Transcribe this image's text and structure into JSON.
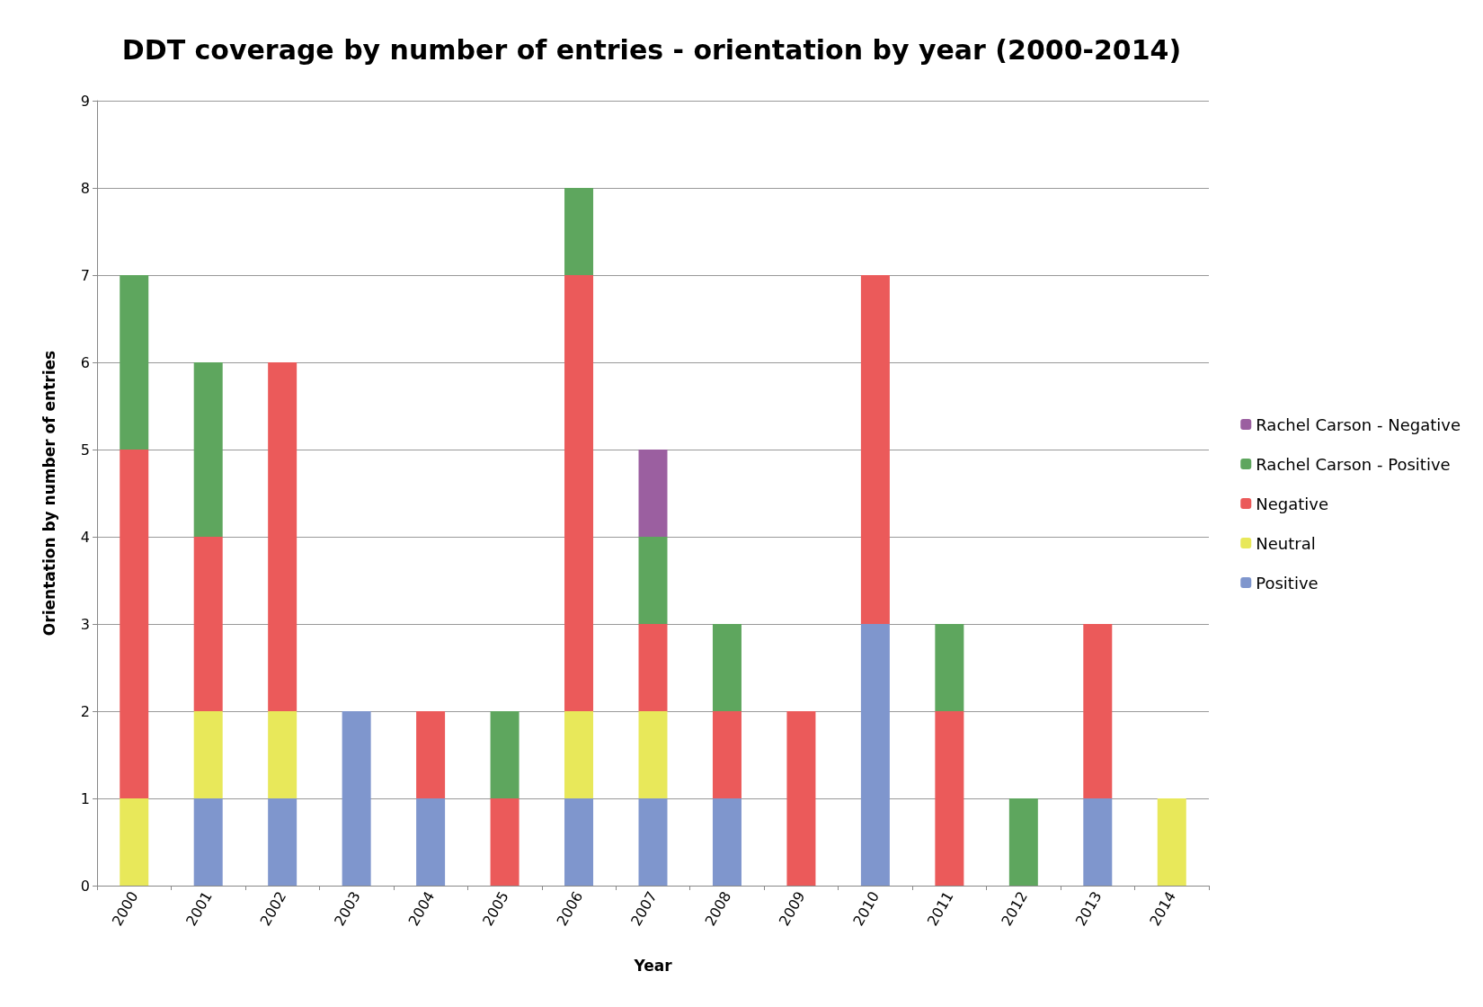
{
  "chart_data": {
    "type": "bar",
    "title": "DDT coverage by number of entries - orientation by year (2000-2014)",
    "xlabel": "Year",
    "ylabel": "Orientation by number of entries",
    "categories": [
      "2000",
      "2001",
      "2002",
      "2003",
      "2004",
      "2005",
      "2006",
      "2007",
      "2008",
      "2009",
      "2010",
      "2011",
      "2012",
      "2013",
      "2014"
    ],
    "stacked": true,
    "series": [
      {
        "name": "Positive",
        "color": "#7f96cd",
        "values": [
          0,
          1,
          1,
          2,
          1,
          0,
          1,
          1,
          1,
          0,
          3,
          0,
          0,
          1,
          0
        ]
      },
      {
        "name": "Neutral",
        "color": "#e8e85a",
        "values": [
          1,
          1,
          1,
          0,
          0,
          0,
          1,
          1,
          0,
          0,
          0,
          0,
          0,
          0,
          1
        ]
      },
      {
        "name": "Negative",
        "color": "#eb5a5a",
        "values": [
          4,
          2,
          4,
          0,
          1,
          1,
          5,
          1,
          1,
          2,
          4,
          2,
          0,
          2,
          0
        ]
      },
      {
        "name": "Rachel Carson - Positive",
        "color": "#5ea65e",
        "values": [
          2,
          2,
          0,
          0,
          0,
          1,
          1,
          1,
          1,
          0,
          0,
          1,
          1,
          0,
          0
        ]
      },
      {
        "name": "Rachel Carson - Negative",
        "color": "#9b5fa0",
        "values": [
          0,
          0,
          0,
          0,
          0,
          0,
          0,
          1,
          0,
          0,
          0,
          0,
          0,
          0,
          0
        ]
      }
    ],
    "ylim": [
      0,
      9
    ],
    "yticks": [
      0,
      1,
      2,
      3,
      4,
      5,
      6,
      7,
      8,
      9
    ],
    "grid": "y",
    "legend": "right"
  }
}
